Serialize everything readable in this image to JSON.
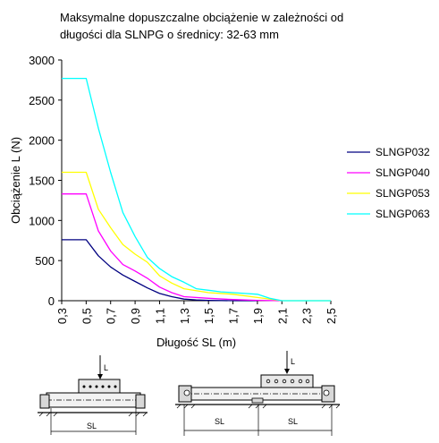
{
  "title_lines": [
    "Maksymalne dopuszczalne obciążenie w zależności od",
    "długości dla SLNPG o średnicy: 32-63 mm"
  ],
  "chart_data": {
    "type": "line",
    "title": "Maksymalne dopuszczalne obciążenie w zależności od długości dla SLNPG o średnicy: 32-63 mm",
    "xlabel": "Długość SL (m)",
    "ylabel": "Obciążenie L (N)",
    "xlim": [
      0.3,
      2.5
    ],
    "ylim": [
      0,
      3000
    ],
    "x_ticks": [
      "0,3",
      "0,5",
      "0,7",
      "0,9",
      "1,1",
      "1,3",
      "1,5",
      "1,7",
      "1,9",
      "2,1",
      "2,3",
      "2,5"
    ],
    "y_ticks": [
      "0",
      "500",
      "1000",
      "1500",
      "2000",
      "2500",
      "3000"
    ],
    "grid": false,
    "legend_position": "right",
    "series": [
      {
        "name": "SLNGP032",
        "color": "#000080",
        "points": [
          [
            0.3,
            760
          ],
          [
            0.5,
            760
          ],
          [
            0.6,
            560
          ],
          [
            0.7,
            420
          ],
          [
            0.8,
            320
          ],
          [
            0.9,
            240
          ],
          [
            1.0,
            160
          ],
          [
            1.1,
            90
          ],
          [
            1.2,
            50
          ],
          [
            1.3,
            20
          ],
          [
            1.4,
            10
          ],
          [
            1.5,
            5
          ],
          [
            1.7,
            0
          ],
          [
            1.9,
            0
          ]
        ]
      },
      {
        "name": "SLNGP040",
        "color": "#ff00ff",
        "points": [
          [
            0.3,
            1330
          ],
          [
            0.5,
            1330
          ],
          [
            0.6,
            870
          ],
          [
            0.7,
            620
          ],
          [
            0.8,
            450
          ],
          [
            0.9,
            370
          ],
          [
            1.0,
            280
          ],
          [
            1.1,
            170
          ],
          [
            1.2,
            100
          ],
          [
            1.3,
            50
          ],
          [
            1.5,
            30
          ],
          [
            1.7,
            15
          ],
          [
            1.9,
            5
          ],
          [
            2.1,
            0
          ]
        ]
      },
      {
        "name": "SLNGP053",
        "color": "#ffff00",
        "points": [
          [
            0.3,
            1600
          ],
          [
            0.5,
            1600
          ],
          [
            0.6,
            1140
          ],
          [
            0.7,
            910
          ],
          [
            0.8,
            700
          ],
          [
            0.9,
            580
          ],
          [
            1.0,
            480
          ],
          [
            1.1,
            310
          ],
          [
            1.2,
            220
          ],
          [
            1.3,
            150
          ],
          [
            1.5,
            100
          ],
          [
            1.7,
            80
          ],
          [
            1.9,
            40
          ],
          [
            2.1,
            0
          ],
          [
            2.3,
            0
          ],
          [
            2.5,
            0
          ]
        ]
      },
      {
        "name": "SLNGP063",
        "color": "#00ffff",
        "points": [
          [
            0.3,
            2770
          ],
          [
            0.5,
            2770
          ],
          [
            0.6,
            2150
          ],
          [
            0.7,
            1600
          ],
          [
            0.8,
            1100
          ],
          [
            0.9,
            800
          ],
          [
            1.0,
            540
          ],
          [
            1.1,
            400
          ],
          [
            1.2,
            300
          ],
          [
            1.3,
            230
          ],
          [
            1.4,
            150
          ],
          [
            1.5,
            130
          ],
          [
            1.6,
            110
          ],
          [
            1.7,
            100
          ],
          [
            1.8,
            90
          ],
          [
            1.9,
            80
          ],
          [
            2.0,
            30
          ],
          [
            2.1,
            0
          ],
          [
            2.3,
            0
          ],
          [
            2.5,
            0
          ]
        ]
      }
    ]
  },
  "diagrams": {
    "load_label": "L",
    "length_label": "SL"
  }
}
